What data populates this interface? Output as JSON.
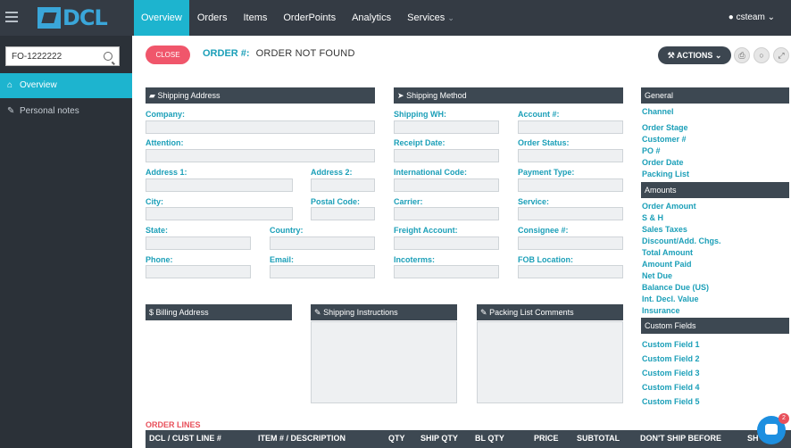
{
  "header": {
    "logo_text": "DCL",
    "nav": [
      {
        "label": "Overview"
      },
      {
        "label": "Orders"
      },
      {
        "label": "Items"
      },
      {
        "label": "OrderPoints"
      },
      {
        "label": "Analytics"
      },
      {
        "label": "Services"
      }
    ],
    "user": "csteam"
  },
  "sidebar": {
    "search_value": "FO-1222222",
    "items": [
      {
        "label": "Overview"
      },
      {
        "label": "Personal notes"
      }
    ]
  },
  "order": {
    "close_label": "CLOSE",
    "title_label": "ORDER #:",
    "title_value": "ORDER NOT FOUND",
    "actions_label": "ACTIONS"
  },
  "shipping_address": {
    "title": "Shipping Address",
    "company": "Company:",
    "attention": "Attention:",
    "address1": "Address 1:",
    "address2": "Address 2:",
    "city": "City:",
    "postal": "Postal Code:",
    "state": "State:",
    "country": "Country:",
    "phone": "Phone:",
    "email": "Email:"
  },
  "shipping_method": {
    "title": "Shipping Method",
    "wh": "Shipping WH:",
    "account": "Account #:",
    "receipt": "Receipt Date:",
    "status": "Order Status:",
    "intl": "International Code:",
    "payment": "Payment Type:",
    "carrier": "Carrier:",
    "service": "Service:",
    "freight": "Freight Account:",
    "consignee": "Consignee #:",
    "incoterms": "Incoterms:",
    "fob": "FOB Location:"
  },
  "billing": {
    "title": "Billing Address"
  },
  "instructions": {
    "title": "Shipping Instructions"
  },
  "packing": {
    "title": "Packing List Comments"
  },
  "general": {
    "title": "General",
    "items": [
      "Channel",
      "Order Stage",
      "Customer #",
      "PO #",
      "Order Date",
      "Packing List"
    ]
  },
  "amounts": {
    "title": "Amounts",
    "items": [
      "Order Amount",
      "S & H",
      "Sales Taxes",
      "Discount/Add. Chgs.",
      "Total Amount",
      "Amount Paid",
      "Net Due",
      "Balance Due (US)",
      "Int. Decl. Value",
      "Insurance"
    ]
  },
  "custom": {
    "title": "Custom Fields",
    "items": [
      "Custom Field 1",
      "Custom Field 2",
      "Custom Field 3",
      "Custom Field 4",
      "Custom Field 5"
    ]
  },
  "order_lines": {
    "title": "ORDER LINES",
    "columns": [
      "DCL / CUST LINE #",
      "ITEM # / DESCRIPTION",
      "QTY",
      "SHIP QTY",
      "BL QTY",
      "PRICE",
      "SUBTOTAL",
      "DON'T SHIP BEFORE",
      "SH"
    ]
  },
  "chat": {
    "badge": "2"
  }
}
